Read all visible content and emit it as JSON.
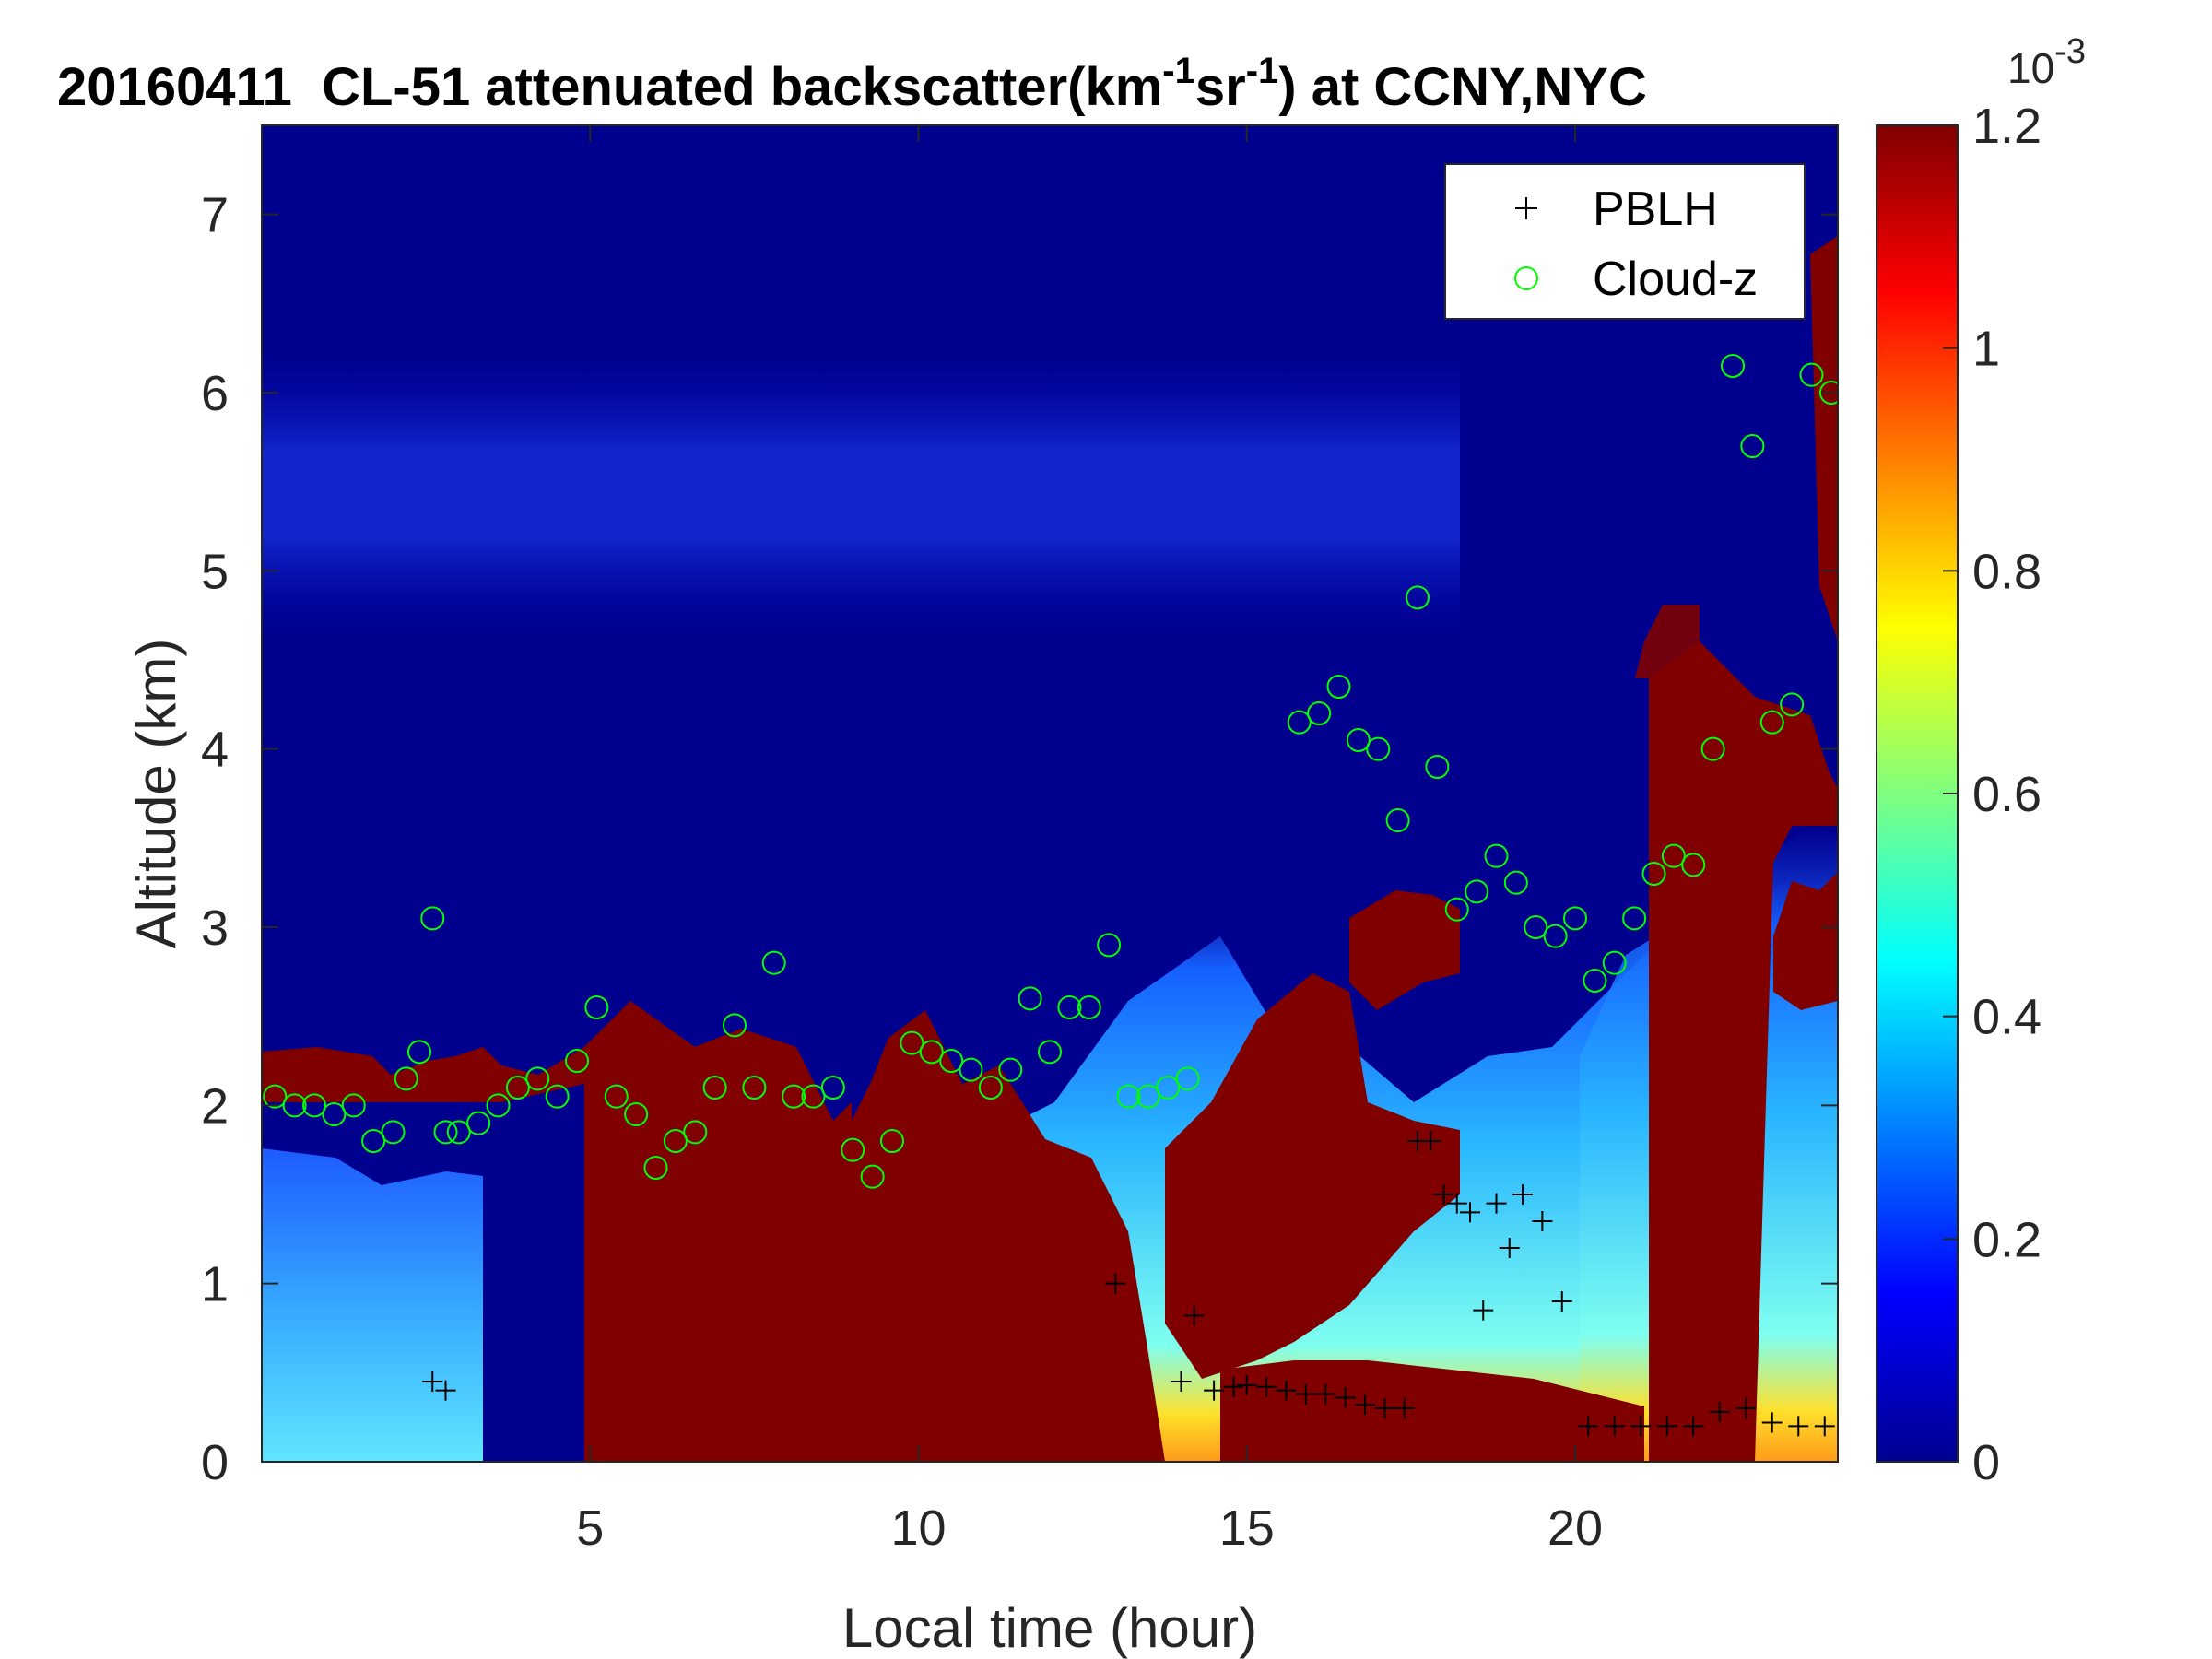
{
  "chart_data": {
    "type": "heatmap",
    "title": {
      "date": "20160411",
      "instrument": "CL-51 attenuated backscatter(km",
      "sup1": "-1",
      "mid": "sr",
      "sup2": "-1",
      "tail": ") at CCNY,NYC"
    },
    "xlabel": "Local time (hour)",
    "ylabel": "Altitude (km)",
    "xlim": [
      0,
      24
    ],
    "ylim": [
      0,
      7.5
    ],
    "xticks": [
      "5",
      "10",
      "15",
      "20"
    ],
    "xtick_values": [
      5,
      10,
      15,
      20
    ],
    "yticks": [
      "0",
      "1",
      "2",
      "3",
      "4",
      "5",
      "6",
      "7"
    ],
    "ytick_values": [
      0,
      1,
      2,
      3,
      4,
      5,
      6,
      7
    ],
    "colorbar": {
      "range": [
        0,
        1.2
      ],
      "ticks": [
        "0",
        "0.2",
        "0.4",
        "0.6",
        "0.8",
        "1",
        "1.2"
      ],
      "tick_values": [
        0,
        0.2,
        0.4,
        0.6,
        0.8,
        1.0,
        1.2
      ],
      "exponent_base": "10",
      "exponent_power": "-3",
      "colormap": "jet"
    },
    "legend": {
      "placement": "top-right",
      "entries": [
        {
          "name": "PBLH",
          "marker": "+",
          "color": "#000000"
        },
        {
          "name": "Cloud-z",
          "marker": "o",
          "color": "#00ff00"
        }
      ]
    },
    "series": [
      {
        "name": "PBLH",
        "x": [
          2.6,
          2.8,
          13.0,
          14.0,
          14.2,
          14.5,
          14.8,
          15.0,
          15.3,
          15.6,
          15.9,
          16.2,
          16.5,
          16.8,
          17.1,
          17.4,
          17.6,
          17.8,
          18.0,
          18.2,
          18.4,
          18.6,
          18.8,
          19.0,
          19.2,
          19.5,
          19.8,
          20.2,
          20.6,
          21.0,
          21.4,
          21.8,
          22.2,
          22.6,
          23.0,
          23.4,
          23.8
        ],
        "y": [
          0.45,
          0.4,
          1.0,
          0.45,
          0.82,
          0.4,
          0.42,
          0.43,
          0.42,
          0.4,
          0.38,
          0.38,
          0.36,
          0.32,
          0.3,
          0.3,
          1.8,
          1.8,
          1.5,
          1.45,
          1.4,
          0.85,
          1.45,
          1.2,
          1.5,
          1.35,
          0.9,
          0.2,
          0.2,
          0.2,
          0.2,
          0.2,
          0.28,
          0.3,
          0.22,
          0.2,
          0.2
        ]
      },
      {
        "name": "Cloud-z",
        "x": [
          0.2,
          0.5,
          0.8,
          1.1,
          1.4,
          1.7,
          2.0,
          2.2,
          2.4,
          2.6,
          2.8,
          3.0,
          3.3,
          3.6,
          3.9,
          4.2,
          4.5,
          4.8,
          5.1,
          5.4,
          5.7,
          6.0,
          6.3,
          6.6,
          6.9,
          7.2,
          7.5,
          7.8,
          8.1,
          8.4,
          8.7,
          9.0,
          9.3,
          9.6,
          9.9,
          10.2,
          10.5,
          10.8,
          11.1,
          11.4,
          11.7,
          12.0,
          12.3,
          12.6,
          12.9,
          13.2,
          13.5,
          13.8,
          14.1,
          15.8,
          16.1,
          16.4,
          16.7,
          17.0,
          17.3,
          17.6,
          17.9,
          18.2,
          18.5,
          18.8,
          19.1,
          19.4,
          19.7,
          20.0,
          20.3,
          20.6,
          20.9,
          21.2,
          21.5,
          21.8,
          22.1,
          22.4,
          22.7,
          23.0,
          23.3,
          23.6,
          23.9
        ],
        "y": [
          2.05,
          2.0,
          2.0,
          1.95,
          2.0,
          1.8,
          1.85,
          2.15,
          2.3,
          3.05,
          1.85,
          1.85,
          1.9,
          2.0,
          2.1,
          2.15,
          2.05,
          2.25,
          2.55,
          2.05,
          1.95,
          1.65,
          1.8,
          1.85,
          2.1,
          2.45,
          2.1,
          2.8,
          2.05,
          2.05,
          2.1,
          1.75,
          1.6,
          1.8,
          2.35,
          2.3,
          2.25,
          2.2,
          2.1,
          2.2,
          2.6,
          2.3,
          2.55,
          2.55,
          2.9,
          2.05,
          2.05,
          2.1,
          2.15,
          4.15,
          4.2,
          4.35,
          4.05,
          4.0,
          3.6,
          4.85,
          3.9,
          3.1,
          3.2,
          3.4,
          3.25,
          3.0,
          2.95,
          3.05,
          2.7,
          2.8,
          3.05,
          3.3,
          3.4,
          3.35,
          4.0,
          6.15,
          5.7,
          4.15,
          4.25,
          6.1,
          6.0
        ]
      }
    ]
  }
}
